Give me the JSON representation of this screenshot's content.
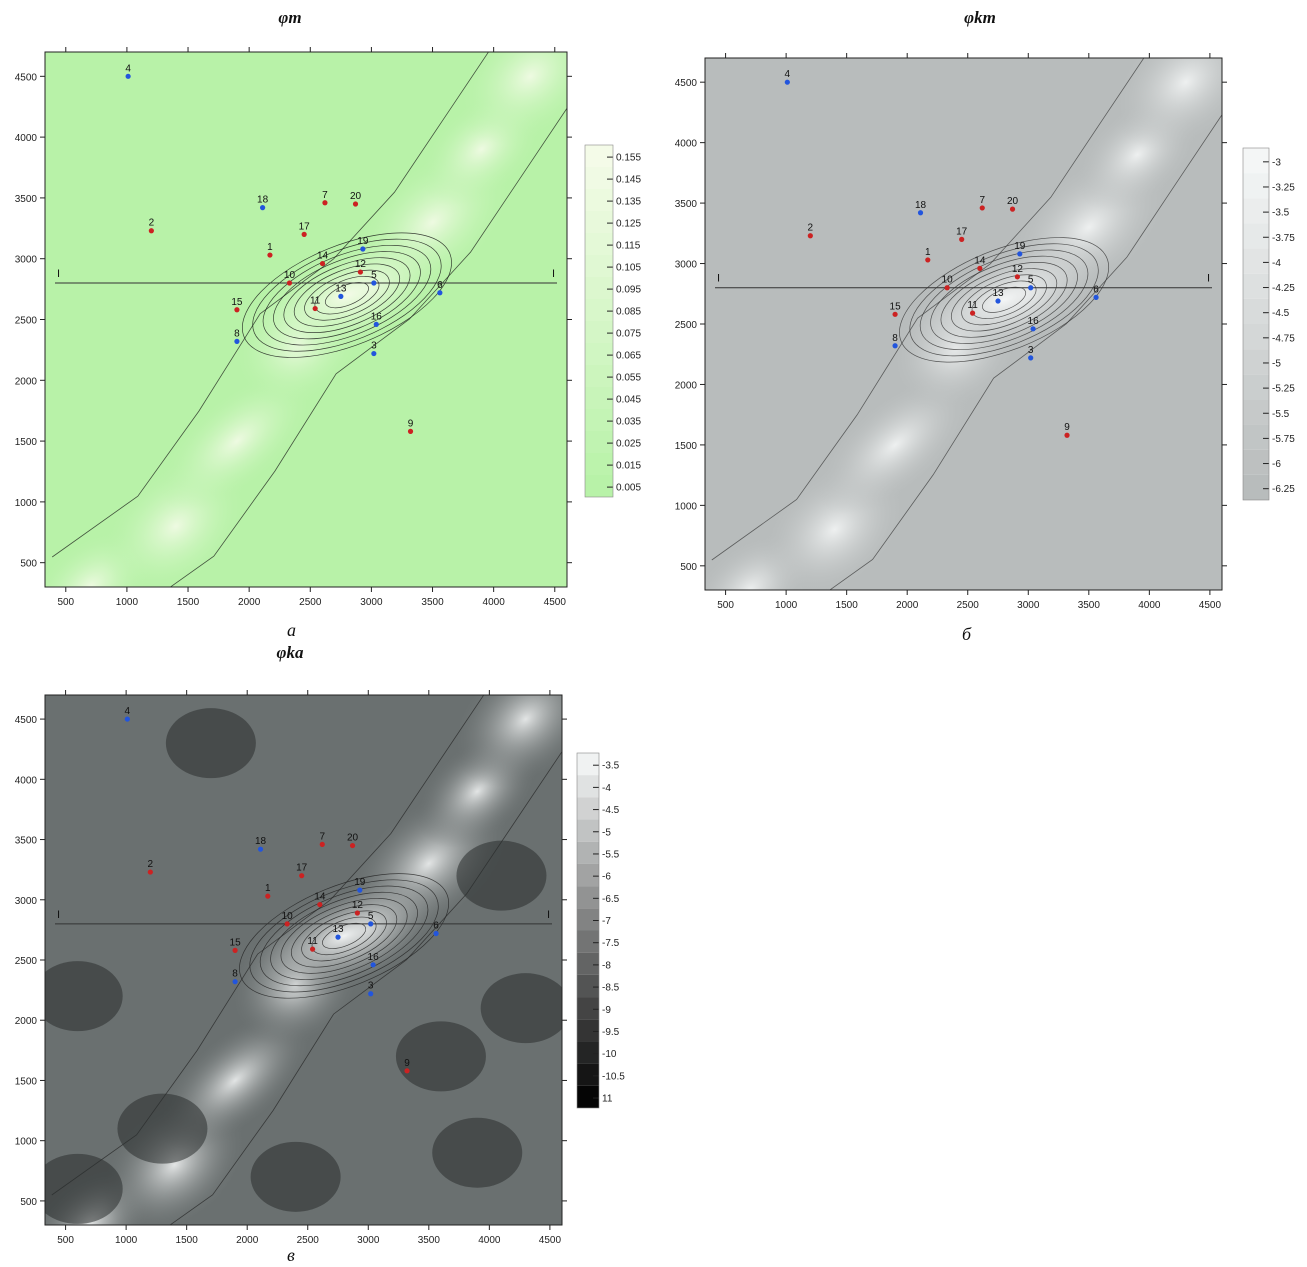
{
  "panels": [
    {
      "id": "a",
      "title": "φm",
      "caption": "а",
      "colors": {
        "base": "#b8f2a8",
        "high": "#f4fbe8",
        "line": "#111111"
      },
      "legend": [
        "0.155",
        "0.145",
        "0.135",
        "0.125",
        "0.115",
        "0.105",
        "0.095",
        "0.085",
        "0.075",
        "0.065",
        "0.055",
        "0.045",
        "0.035",
        "0.025",
        "0.015",
        "0.005"
      ]
    },
    {
      "id": "b",
      "title": "φkm",
      "caption": "б",
      "colors": {
        "base": "#b8bcbc",
        "high": "#f4f6f6",
        "line": "#333333"
      },
      "legend": [
        "-3",
        "-3.25",
        "-3.5",
        "-3.75",
        "-4",
        "-4.25",
        "-4.5",
        "-4.75",
        "-5",
        "-5.25",
        "-5.5",
        "-5.75",
        "-6",
        "-6.25"
      ]
    },
    {
      "id": "v",
      "title": "φka",
      "caption": "в",
      "colors": {
        "base": "#6a7070",
        "high": "#f0f2f2",
        "line": "#222222"
      },
      "legend": [
        "-3.5",
        "-4",
        "-4.5",
        "-5",
        "-5.5",
        "-6",
        "-6.5",
        "-7",
        "-7.5",
        "-8",
        "-8.5",
        "-9",
        "-9.5",
        "-10",
        "-10.5",
        "11"
      ]
    }
  ],
  "axes": {
    "x_ticks": [
      "500",
      "1000",
      "1500",
      "2000",
      "2500",
      "3000",
      "3500",
      "4000",
      "4500"
    ],
    "y_ticks": [
      "4500",
      "4000",
      "3500",
      "3000",
      "2500",
      "2000",
      "1500",
      "1000",
      "500"
    ],
    "profile_label": "I"
  },
  "wells": [
    {
      "label": "1",
      "x": 2170,
      "y": 3030,
      "color": "#cc2222"
    },
    {
      "label": "2",
      "x": 1200,
      "y": 3230,
      "color": "#cc2222"
    },
    {
      "label": "3",
      "x": 3020,
      "y": 2220,
      "color": "#2255dd"
    },
    {
      "label": "4",
      "x": 1010,
      "y": 4500,
      "color": "#2255dd"
    },
    {
      "label": "5",
      "x": 3020,
      "y": 2800,
      "color": "#2255dd"
    },
    {
      "label": "6",
      "x": 3560,
      "y": 2720,
      "color": "#2255dd"
    },
    {
      "label": "7",
      "x": 2620,
      "y": 3460,
      "color": "#cc2222"
    },
    {
      "label": "8",
      "x": 1900,
      "y": 2320,
      "color": "#2255dd"
    },
    {
      "label": "9",
      "x": 3320,
      "y": 1580,
      "color": "#cc2222"
    },
    {
      "label": "10",
      "x": 2330,
      "y": 2800,
      "color": "#cc2222"
    },
    {
      "label": "11",
      "x": 2540,
      "y": 2590,
      "color": "#cc2222"
    },
    {
      "label": "12",
      "x": 2910,
      "y": 2890,
      "color": "#cc2222"
    },
    {
      "label": "13",
      "x": 2750,
      "y": 2690,
      "color": "#2255dd"
    },
    {
      "label": "14",
      "x": 2600,
      "y": 2960,
      "color": "#cc2222"
    },
    {
      "label": "15",
      "x": 1900,
      "y": 2580,
      "color": "#cc2222"
    },
    {
      "label": "16",
      "x": 3040,
      "y": 2460,
      "color": "#2255dd"
    },
    {
      "label": "17",
      "x": 2450,
      "y": 3200,
      "color": "#cc2222"
    },
    {
      "label": "18",
      "x": 2110,
      "y": 3420,
      "color": "#2255dd"
    },
    {
      "label": "19",
      "x": 2930,
      "y": 3080,
      "color": "#2255dd"
    },
    {
      "label": "20",
      "x": 2870,
      "y": 3450,
      "color": "#cc2222"
    }
  ]
}
